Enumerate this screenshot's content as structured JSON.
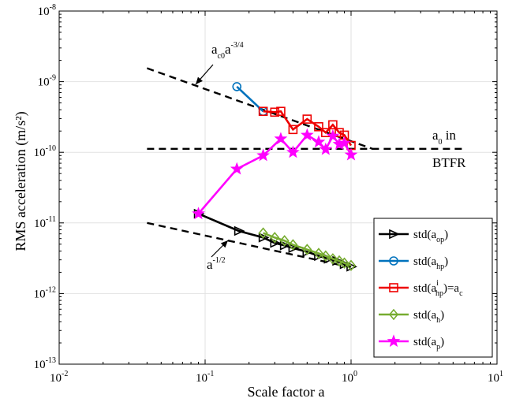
{
  "chart_data": {
    "type": "line",
    "xscale": "log",
    "yscale": "log",
    "xlim": [
      0.01,
      10
    ],
    "ylim": [
      1e-13,
      1e-08
    ],
    "xlabel": "Scale factor a",
    "ylabel": "RMS acceleration (m/s²)",
    "grid": true,
    "legend_position": "right",
    "x_ticks": [
      {
        "base": "10",
        "exp": "-2"
      },
      {
        "base": "10",
        "exp": "-1"
      },
      {
        "base": "10",
        "exp": "0"
      },
      {
        "base": "10",
        "exp": "1"
      }
    ],
    "y_ticks": [
      {
        "base": "10",
        "exp": "-13"
      },
      {
        "base": "10",
        "exp": "-12"
      },
      {
        "base": "10",
        "exp": "-11"
      },
      {
        "base": "10",
        "exp": "-10"
      },
      {
        "base": "10",
        "exp": "-9"
      },
      {
        "base": "10",
        "exp": "-8"
      }
    ],
    "series": [
      {
        "name": "std(a_op)",
        "legend": {
          "main": "std(a",
          "sub": "op",
          "tail": ")"
        },
        "color": "#000000",
        "marker": "triangle-right",
        "x": [
          0.09,
          0.17,
          0.25,
          0.3,
          0.35,
          0.4,
          0.5,
          0.6,
          0.7,
          0.8,
          0.9,
          1.0
        ],
        "y": [
          1.35e-11,
          7.7e-12,
          6.2e-12,
          5.2e-12,
          4.8e-12,
          4.4e-12,
          3.9e-12,
          3.4e-12,
          3.1e-12,
          2.9e-12,
          2.6e-12,
          2.4e-12
        ]
      },
      {
        "name": "std(a_hp)",
        "legend": {
          "main": "std(a",
          "sub": "hp",
          "tail": ")"
        },
        "color": "#0072BD",
        "marker": "circle",
        "x": [
          0.165,
          0.25
        ],
        "y": [
          8.5e-10,
          3.8e-10
        ]
      },
      {
        "name": "std(a_hp^i)=a_c",
        "legend": {
          "main": "std(a",
          "sub": "hp",
          "sup": "i",
          "tail": ")=a",
          "sub2": "c"
        },
        "color": "#EE0000",
        "marker": "square",
        "x": [
          0.25,
          0.3,
          0.33,
          0.4,
          0.5,
          0.6,
          0.67,
          0.75,
          0.83,
          0.9,
          1.0
        ],
        "y": [
          3.8e-10,
          3.7e-10,
          3.8e-10,
          2.1e-10,
          2.95e-10,
          2.3e-10,
          1.9e-10,
          2.45e-10,
          1.9e-10,
          1.75e-10,
          1.25e-10
        ]
      },
      {
        "name": "std(a_h)",
        "legend": {
          "main": "std(a",
          "sub": "h",
          "tail": ")"
        },
        "color": "#77AC30",
        "marker": "diamond",
        "x": [
          0.25,
          0.3,
          0.35,
          0.4,
          0.5,
          0.6,
          0.67,
          0.75,
          0.83,
          0.9,
          1.0
        ],
        "y": [
          7.2e-12,
          6.2e-12,
          5.6e-12,
          4.9e-12,
          4.2e-12,
          3.7e-12,
          3.4e-12,
          3.1e-12,
          2.9e-12,
          2.7e-12,
          2.5e-12
        ]
      },
      {
        "name": "std(a_p)",
        "legend": {
          "main": "std(a",
          "sub": "p",
          "tail": ")"
        },
        "color": "#FF00FF",
        "marker": "star",
        "x": [
          0.09,
          0.165,
          0.25,
          0.33,
          0.4,
          0.5,
          0.6,
          0.67,
          0.75,
          0.83,
          0.9,
          1.0
        ],
        "y": [
          1.35e-11,
          5.8e-11,
          9e-11,
          1.55e-10,
          1e-10,
          1.75e-10,
          1.4e-10,
          1.1e-10,
          1.7e-10,
          1.3e-10,
          1.35e-10,
          9.2e-11
        ]
      }
    ],
    "reference_lines": [
      {
        "name": "ac0-a-3/4-line",
        "x": [
          0.04,
          1.4
        ],
        "y": [
          1.55e-09,
          1.12e-10
        ]
      },
      {
        "name": "a0-btfr-line",
        "x": [
          0.04,
          6.0
        ],
        "y": [
          1.12e-10,
          1.12e-10
        ]
      },
      {
        "name": "a-1/2-line",
        "x": [
          0.04,
          1.0
        ],
        "y": [
          1e-11,
          2.35e-12
        ]
      }
    ],
    "annotations": [
      {
        "name": "ac0-label",
        "parts": [
          {
            "t": "a"
          },
          {
            "t": "c0",
            "shift": "sub"
          },
          {
            "t": "a",
            "shift": "base"
          },
          {
            "t": "-3/4",
            "shift": "sup"
          }
        ]
      },
      {
        "name": "a0-label",
        "parts": [
          {
            "t": "a"
          },
          {
            "t": "0",
            "shift": "sub"
          },
          {
            "t": " in",
            "shift": "base"
          }
        ]
      },
      {
        "name": "btfr-label",
        "parts": [
          {
            "t": "BTFR"
          }
        ]
      },
      {
        "name": "a-half-label",
        "parts": [
          {
            "t": "a"
          },
          {
            "t": "-1/2",
            "shift": "sup"
          }
        ]
      }
    ]
  }
}
